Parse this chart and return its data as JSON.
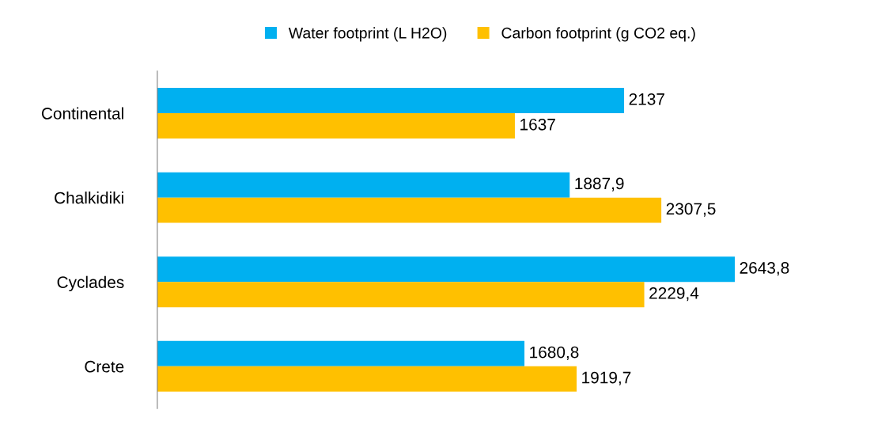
{
  "chart_data": {
    "type": "bar",
    "orientation": "horizontal",
    "categories": [
      "Continental",
      "Chalkidiki",
      "Cyclades",
      "Crete"
    ],
    "series": [
      {
        "name": "Water footprint (L H2O)",
        "color": "#00b0f0",
        "values": [
          2137,
          1887.9,
          2643.8,
          1680.8
        ],
        "value_labels": [
          "2137",
          "1887,9",
          "2643,8",
          "1680,8"
        ]
      },
      {
        "name": "Carbon footprint (g CO2 eq.)",
        "color": "#ffc000",
        "values": [
          1637,
          2307.5,
          2229.4,
          1919.7
        ],
        "value_labels": [
          "1637",
          "2307,5",
          "2229,4",
          "1919,7"
        ]
      }
    ],
    "legend": "top",
    "grid": false
  }
}
